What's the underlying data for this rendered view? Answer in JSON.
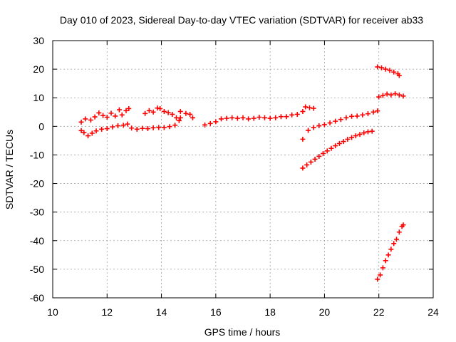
{
  "chart_data": {
    "type": "scatter",
    "title": "Day 010 of 2023, Sidereal Day-to-day VTEC variation (SDTVAR) for receiver ab33",
    "xlabel": "GPS time / hours",
    "ylabel": "SDTVAR / TECUs",
    "xlim": [
      10,
      24
    ],
    "ylim": [
      -60,
      30
    ],
    "xticks": [
      10,
      12,
      14,
      16,
      18,
      20,
      22,
      24
    ],
    "yticks": [
      -60,
      -50,
      -40,
      -30,
      -20,
      -10,
      0,
      10,
      20,
      30
    ],
    "grid": true,
    "marker": "+",
    "color": "#ff0000",
    "series": [
      {
        "points": [
          [
            11.05,
            1.5
          ],
          [
            11.2,
            2.6
          ],
          [
            11.4,
            2.2
          ],
          [
            11.55,
            3.3
          ],
          [
            11.7,
            4.7
          ],
          [
            11.85,
            3.8
          ],
          [
            12.0,
            3.2
          ],
          [
            12.15,
            4.6
          ],
          [
            12.3,
            3.6
          ],
          [
            12.45,
            5.8
          ],
          [
            12.55,
            4.0
          ],
          [
            12.7,
            5.5
          ],
          [
            12.8,
            6.2
          ]
        ]
      },
      {
        "points": [
          [
            11.05,
            -1.5
          ],
          [
            11.15,
            -2.2
          ],
          [
            11.3,
            -3.3
          ],
          [
            11.45,
            -2.4
          ],
          [
            11.6,
            -1.6
          ],
          [
            11.8,
            -1.0
          ],
          [
            12.0,
            -0.8
          ],
          [
            12.2,
            -0.2
          ],
          [
            12.4,
            0.2
          ],
          [
            12.6,
            0.4
          ],
          [
            12.75,
            0.8
          ],
          [
            12.9,
            -0.6
          ],
          [
            13.1,
            -1.0
          ],
          [
            13.3,
            -0.7
          ],
          [
            13.5,
            -0.8
          ],
          [
            13.7,
            -0.5
          ],
          [
            13.9,
            -0.4
          ],
          [
            14.1,
            -0.4
          ],
          [
            14.3,
            -0.1
          ],
          [
            14.5,
            0.4
          ],
          [
            14.65,
            2.0
          ],
          [
            14.7,
            3.0
          ]
        ]
      },
      {
        "points": [
          [
            13.4,
            4.5
          ],
          [
            13.55,
            5.5
          ],
          [
            13.7,
            5.0
          ],
          [
            13.85,
            6.4
          ],
          [
            13.95,
            6.2
          ],
          [
            14.1,
            5.2
          ],
          [
            14.25,
            4.8
          ],
          [
            14.4,
            4.2
          ],
          [
            14.55,
            3.0
          ],
          [
            14.7,
            5.2
          ],
          [
            14.9,
            4.5
          ],
          [
            15.05,
            4.2
          ],
          [
            15.15,
            3.0
          ]
        ]
      },
      {
        "points": [
          [
            15.6,
            0.5
          ],
          [
            15.8,
            1.0
          ],
          [
            16.0,
            1.6
          ],
          [
            16.2,
            2.6
          ],
          [
            16.4,
            2.8
          ],
          [
            16.6,
            3.0
          ],
          [
            16.8,
            2.8
          ],
          [
            17.0,
            3.0
          ],
          [
            17.2,
            2.6
          ],
          [
            17.4,
            2.8
          ],
          [
            17.6,
            3.2
          ],
          [
            17.8,
            3.0
          ],
          [
            18.0,
            2.8
          ],
          [
            18.2,
            3.0
          ],
          [
            18.4,
            3.4
          ],
          [
            18.6,
            3.4
          ],
          [
            18.8,
            4.0
          ],
          [
            19.0,
            4.2
          ],
          [
            19.2,
            5.2
          ]
        ]
      },
      {
        "points": [
          [
            19.3,
            6.8
          ],
          [
            19.45,
            6.5
          ],
          [
            19.6,
            6.3
          ]
        ]
      },
      {
        "points": [
          [
            19.2,
            -4.5
          ]
        ]
      },
      {
        "points": [
          [
            19.4,
            -1.4
          ],
          [
            19.6,
            -0.4
          ],
          [
            19.8,
            0.2
          ],
          [
            20.0,
            0.6
          ],
          [
            20.2,
            1.2
          ],
          [
            20.4,
            1.8
          ],
          [
            20.6,
            2.4
          ],
          [
            20.8,
            3.0
          ],
          [
            21.0,
            3.5
          ],
          [
            21.2,
            3.6
          ],
          [
            21.4,
            4.0
          ],
          [
            21.6,
            4.4
          ],
          [
            21.8,
            5.0
          ],
          [
            21.95,
            5.4
          ]
        ]
      },
      {
        "points": [
          [
            19.2,
            -14.6
          ],
          [
            19.35,
            -13.5
          ],
          [
            19.5,
            -12.5
          ],
          [
            19.65,
            -11.5
          ],
          [
            19.8,
            -10.5
          ],
          [
            19.95,
            -9.5
          ],
          [
            20.1,
            -8.6
          ],
          [
            20.25,
            -7.7
          ],
          [
            20.4,
            -6.8
          ],
          [
            20.55,
            -6.0
          ],
          [
            20.7,
            -5.3
          ],
          [
            20.85,
            -4.5
          ],
          [
            21.0,
            -3.9
          ],
          [
            21.15,
            -3.3
          ],
          [
            21.3,
            -2.8
          ],
          [
            21.45,
            -2.3
          ],
          [
            21.6,
            -1.9
          ],
          [
            21.75,
            -1.7
          ]
        ]
      },
      {
        "points": [
          [
            21.95,
            20.8
          ],
          [
            22.1,
            20.5
          ],
          [
            22.25,
            20.0
          ],
          [
            22.4,
            19.6
          ],
          [
            22.55,
            19.0
          ],
          [
            22.7,
            18.4
          ],
          [
            22.75,
            17.8
          ]
        ]
      },
      {
        "points": [
          [
            22.0,
            10.3
          ],
          [
            22.15,
            10.8
          ],
          [
            22.3,
            11.3
          ],
          [
            22.45,
            11.0
          ],
          [
            22.6,
            11.4
          ],
          [
            22.75,
            11.0
          ],
          [
            22.9,
            10.6
          ]
        ]
      },
      {
        "points": [
          [
            21.95,
            -53.5
          ],
          [
            22.05,
            -52.0
          ],
          [
            22.15,
            -49.5
          ],
          [
            22.25,
            -47.0
          ],
          [
            22.35,
            -45.0
          ],
          [
            22.45,
            -43.0
          ],
          [
            22.55,
            -41.0
          ],
          [
            22.65,
            -39.5
          ],
          [
            22.75,
            -37.0
          ],
          [
            22.85,
            -35.0
          ],
          [
            22.9,
            -34.5
          ]
        ]
      }
    ]
  }
}
